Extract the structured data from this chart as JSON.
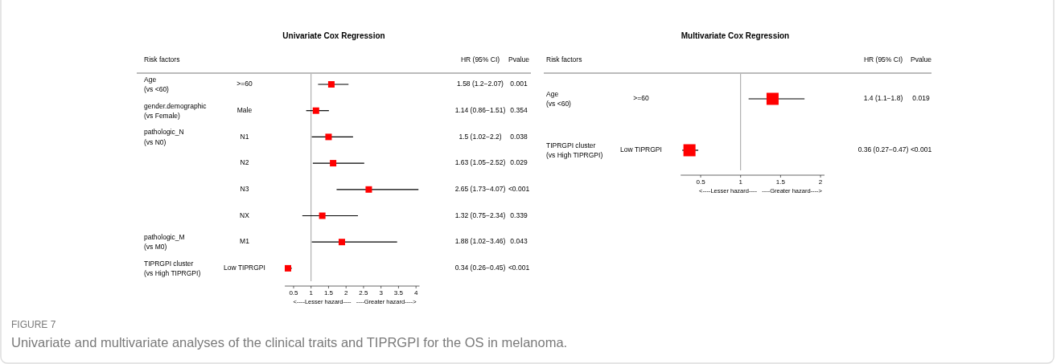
{
  "chart_data": [
    {
      "type": "scatter",
      "orientation": "horizontal",
      "title": "Univariate Cox Regression",
      "xlabel": "<----Lesser hazard----   ----Greater hazard---->",
      "categories": [
        ">=60",
        "Male",
        "N1",
        "N2",
        "N3",
        "NX",
        "M1",
        "Low TIPRGPI"
      ],
      "values": [
        1.58,
        1.14,
        1.5,
        1.63,
        2.65,
        1.32,
        1.88,
        0.34
      ],
      "errors": [
        [
          1.2,
          2.07
        ],
        [
          0.86,
          1.51
        ],
        [
          1.02,
          2.2
        ],
        [
          1.05,
          2.52
        ],
        [
          1.73,
          4.07
        ],
        [
          0.75,
          2.34
        ],
        [
          1.02,
          3.46
        ],
        [
          0.26,
          0.45
        ]
      ],
      "value_labels": [
        "1.58 (1.2−2.07)",
        "1.14 (0.86−1.51)",
        "1.5 (1.02−2.2)",
        "1.63 (1.05−2.52)",
        "2.65 (1.73−4.07)",
        "1.32 (0.75−2.34)",
        "1.88 (1.02−3.46)",
        "0.34 (0.26−0.45)"
      ],
      "color": "#ff0000",
      "marker": "square",
      "xlim": [
        0.25,
        4.1
      ],
      "xticks": [
        0.5,
        1,
        1.5,
        2,
        2.5,
        3,
        3.5,
        4
      ],
      "ref_lines": [
        {
          "axis": "x",
          "value": 1
        }
      ],
      "annotations": [
        "Risk factors",
        "HR (95% CI)",
        "Pvalue",
        "Age\n(vs <60)",
        "gender.demographic\n(vs Female)",
        "pathologic_N\n(vs N0)",
        "pathologic_M\n(vs M0)",
        "TIPRGPI cluster\n(vs High TIPRGPI)",
        "0.001",
        "0.354",
        "0.038",
        "0.029",
        "<0.001",
        "0.339",
        "0.043",
        "<0.001",
        "FIGURE 7",
        "Univariate and multivariate analyses of the clinical traits and TIPRGPI for the OS in melanoma."
      ]
    },
    {
      "type": "scatter",
      "orientation": "horizontal",
      "title": "Multivariate Cox Regression",
      "xlabel": "<----Lesser hazard----   ----Greater hazard---->",
      "categories": [
        ">=60",
        "Low TIPRGPI"
      ],
      "values": [
        1.4,
        0.36
      ],
      "errors": [
        [
          1.1,
          1.8
        ],
        [
          0.27,
          0.47
        ]
      ],
      "color": "#ff0000",
      "marker": "square",
      "xlim": [
        0.25,
        2.05
      ],
      "xticks": [
        0.5,
        1,
        1.5,
        2
      ],
      "ref_lines": [
        {
          "axis": "x",
          "value": 1
        }
      ],
      "annotations": [
        "Risk factors",
        "HR (95% CI)",
        "Pvalue",
        "Age\n(vs <60)",
        "TIPRGPI cluster\n(vs High TIPRGPI)",
        "1.4 (1.1−1.8)",
        "0.36 (0.27−0.47)",
        "0.019",
        "<0.001"
      ]
    }
  ]
}
